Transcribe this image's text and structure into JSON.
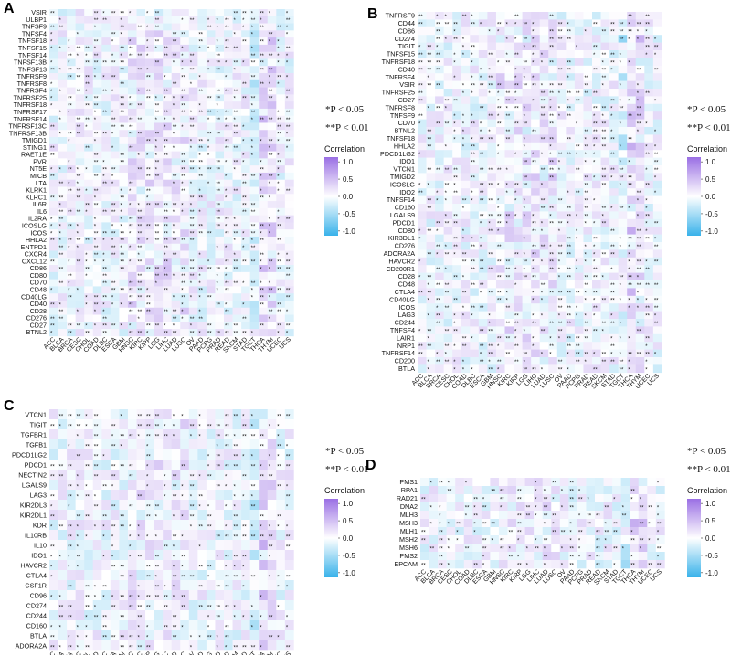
{
  "figure": {
    "significance_notes": [
      "*P < 0.05",
      "**P < 0.01"
    ],
    "colorbar": {
      "title": "Correlation",
      "ticks": [
        "1.0",
        "0.5",
        "0.0",
        "-0.5",
        "-1.0"
      ],
      "colors": {
        "low": "#39b2ea",
        "mid": "#ffffff",
        "high": "#9a6fe4"
      }
    }
  },
  "chart_data": [
    {
      "type": "heatmap",
      "panel": "A",
      "xlabel": "",
      "ylabel": "",
      "clim": [
        -1,
        1
      ],
      "columns": [
        "ACC",
        "BLCA",
        "BRCA",
        "CESC",
        "CHOL",
        "COAD",
        "DLBC",
        "ESCA",
        "GBM",
        "HNSC",
        "KIRC",
        "KIRP",
        "LGG",
        "LIHC",
        "LUAD",
        "LUSC",
        "OV",
        "PAAD",
        "PCPG",
        "PRAD",
        "READ",
        "SKCM",
        "STAD",
        "TGCT",
        "THCA",
        "THYM",
        "UCEC",
        "UCS"
      ],
      "rows": [
        "VSIR",
        "ULBP1",
        "TNFSF9",
        "TNFSF4",
        "TNFSF18",
        "TNFSF15",
        "TNFSF14",
        "TNFSF13B",
        "TNFSF13",
        "TNFRSF9",
        "TNFRSF8",
        "TNFRSF4",
        "TNFRSF25",
        "TNFRSF18",
        "TNFRSF17",
        "TNFRSF14",
        "TNFRSF13C",
        "TNFRSF13B",
        "TMIGD1",
        "STING1",
        "RAET1E",
        "PVR",
        "NT5E",
        "MICB",
        "LTA",
        "KLRK1",
        "KLRC1",
        "IL6R",
        "IL6",
        "IL2RA",
        "ICOSLG",
        "ICOS",
        "HHLA2",
        "ENTPD1",
        "CXCR4",
        "CXCL12",
        "CD86",
        "CD80",
        "CD70",
        "CD48",
        "CD40LG",
        "CD40",
        "CD28",
        "CD276",
        "CD27",
        "BTNL2"
      ]
    },
    {
      "type": "heatmap",
      "panel": "B",
      "xlabel": "",
      "ylabel": "",
      "clim": [
        -1,
        1
      ],
      "columns": [
        "ACC",
        "BLCA",
        "BRCA",
        "CESC",
        "CHOL",
        "COAD",
        "DLBC",
        "ESCA",
        "GBM",
        "HNSC",
        "KIRC",
        "KIRP",
        "LGG",
        "LIHC",
        "LUAD",
        "LUSC",
        "OV",
        "PAAD",
        "PCPG",
        "PRAD",
        "READ",
        "SKCM",
        "STAD",
        "TGCT",
        "THCA",
        "THYM",
        "UCEC",
        "UCS"
      ],
      "rows": [
        "TNFRSF9",
        "CD44",
        "CD86",
        "CD274",
        "TIGIT",
        "TNFSF15",
        "TNFRSF18",
        "CD40",
        "TNFRSF4",
        "VSIR",
        "TNFRSF25",
        "CD27",
        "TNFRSF8",
        "TNFSF9",
        "CD70",
        "BTNL2",
        "TNFSF18",
        "HHLA2",
        "PDCD1LG2",
        "IDO1",
        "VTCN1",
        "TMIGD2",
        "ICOSLG",
        "IDO2",
        "TNFSF14",
        "CD160",
        "LGALS9",
        "PDCD1",
        "CD80",
        "KIR3DL1",
        "CD276",
        "ADORA2A",
        "HAVCR2",
        "CD200R1",
        "CD28",
        "CD48",
        "CTLA4",
        "CD40LG",
        "ICOS",
        "LAG3",
        "CD244",
        "TNFSF4",
        "LAIR1",
        "NRP1",
        "TNFRSF14",
        "CD200",
        "BTLA"
      ]
    },
    {
      "type": "heatmap",
      "panel": "C",
      "xlabel": "",
      "ylabel": "",
      "clim": [
        -1,
        1
      ],
      "columns": [
        "ACC",
        "BLCA",
        "BRCA",
        "CESC",
        "CHOL",
        "COAD",
        "DLBC",
        "ESCA",
        "GBM",
        "HNSC",
        "KIRC",
        "KIRP",
        "LGG",
        "LIHC",
        "LUAD",
        "LUSC",
        "OV",
        "PAAD",
        "PCPG",
        "PRAD",
        "READ",
        "SKCM",
        "STAD",
        "TGCT",
        "THCA",
        "THYM",
        "UCEC",
        "UCS"
      ],
      "rows": [
        "VTCN1",
        "TIGIT",
        "TGFBR1",
        "TGFB1",
        "PDCD1LG2",
        "PDCD1",
        "NECTIN2",
        "LGALS9",
        "LAG3",
        "KIR2DL3",
        "KIR2DL1",
        "KDR",
        "IL10RB",
        "IL10",
        "IDO1",
        "HAVCR2",
        "CTLA4",
        "CSF1R",
        "CD96",
        "CD274",
        "CD244",
        "CD160",
        "BTLA",
        "ADORA2A"
      ]
    },
    {
      "type": "heatmap",
      "panel": "D",
      "xlabel": "",
      "ylabel": "",
      "clim": [
        -1,
        1
      ],
      "columns": [
        "ACC",
        "BLCA",
        "BRCA",
        "CESC",
        "CHOL",
        "COAD",
        "DLBC",
        "ESCA",
        "GBM",
        "HNSC",
        "KIRC",
        "KIRP",
        "LGG",
        "LIHC",
        "LUAD",
        "LUSC",
        "OV",
        "PAAD",
        "PCPG",
        "PRAD",
        "READ",
        "SKCM",
        "STAD",
        "TGCT",
        "THCA",
        "THYM",
        "UCEC",
        "UCS"
      ],
      "rows": [
        "PMS1",
        "RPA1",
        "RAD21",
        "DNA2",
        "MLH3",
        "MSH3",
        "MLH1",
        "MSH2",
        "MSH6",
        "PMS2",
        "EPCAM"
      ]
    }
  ]
}
